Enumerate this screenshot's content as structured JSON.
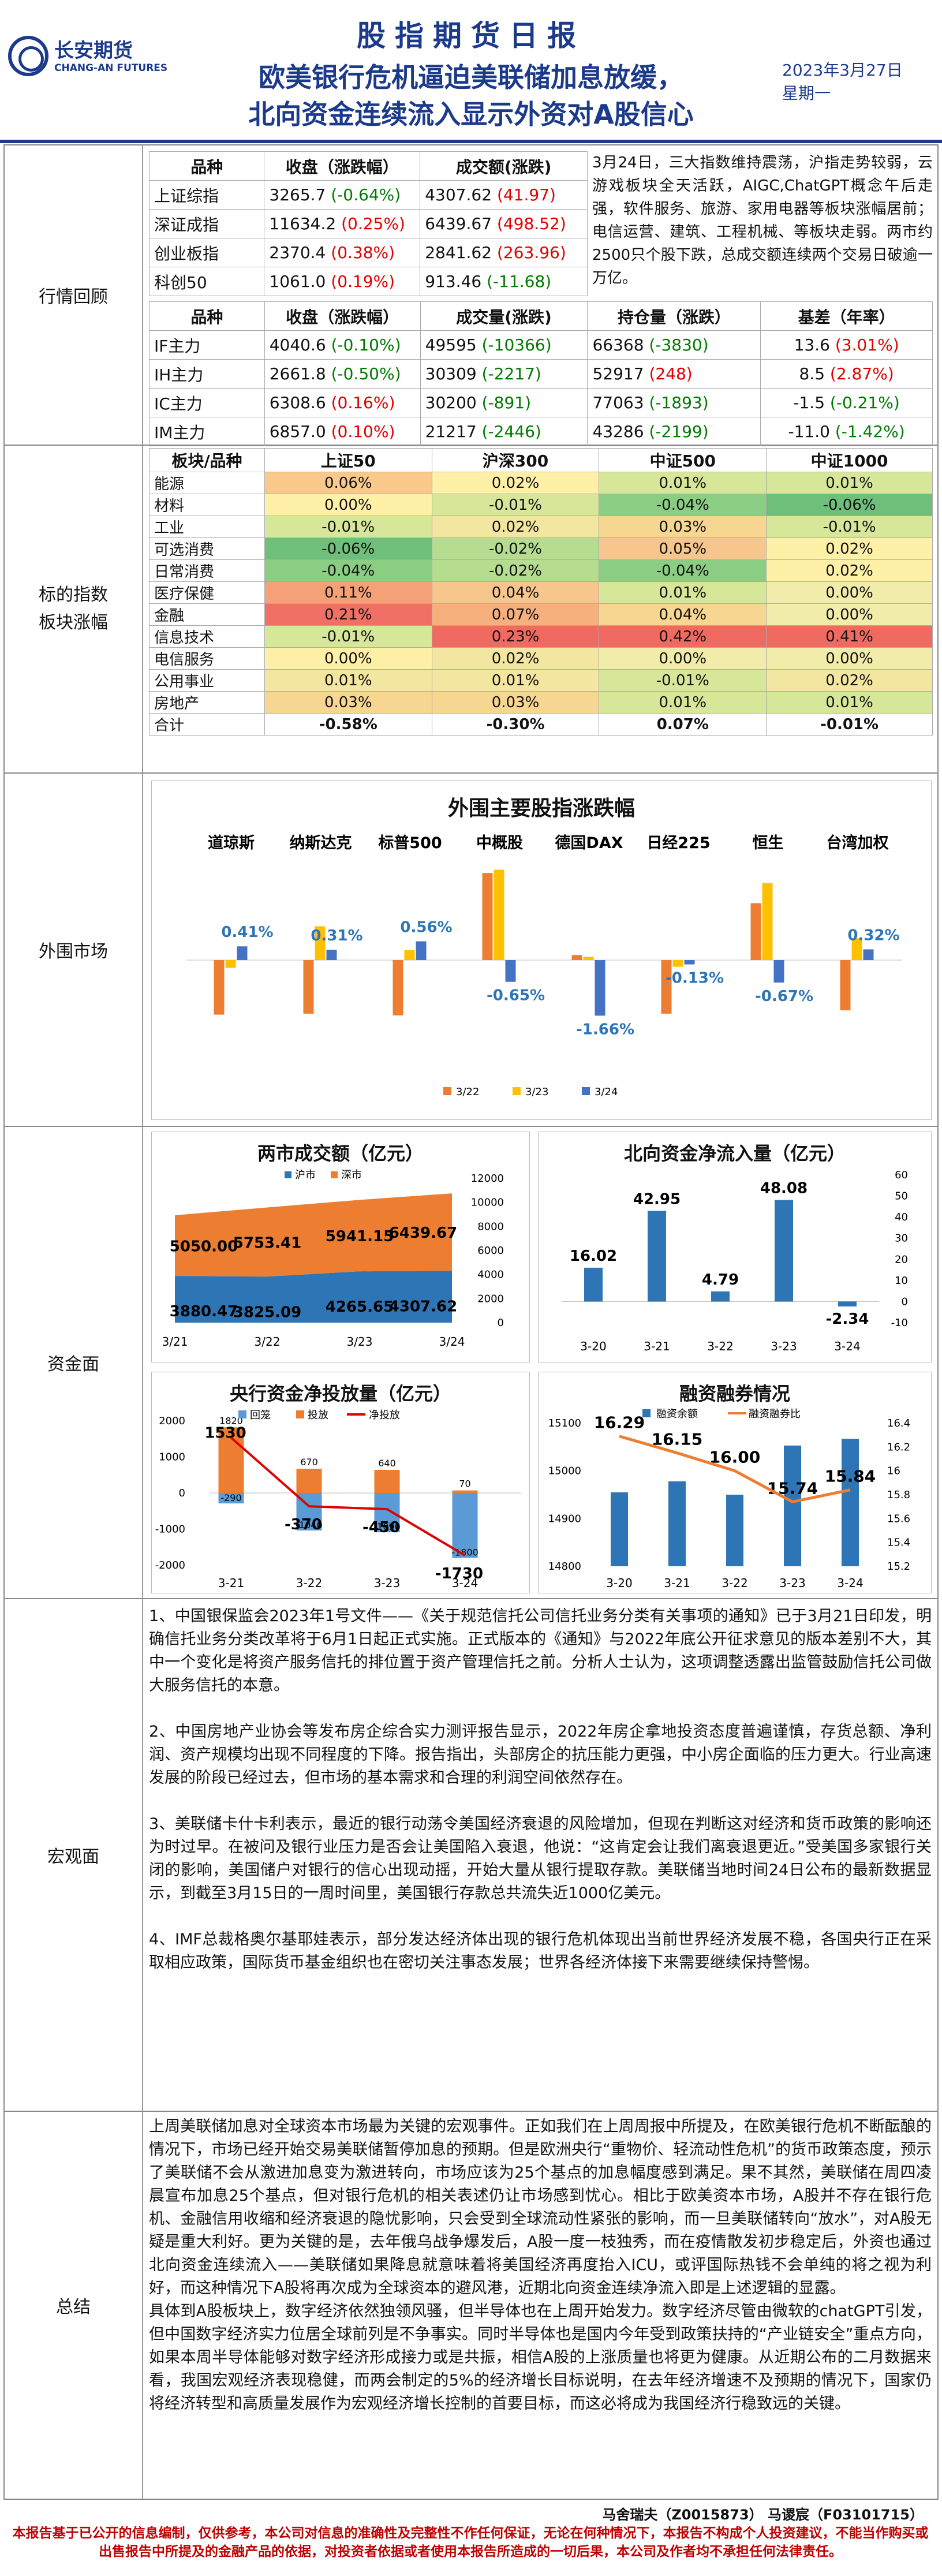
{
  "header": {
    "company_cn": "长安期货",
    "company_en": "CHANG-AN FUTURES",
    "report_title": "股指期货日报",
    "headline_line1": "欧美银行危机逼迫美联储加息放缓，",
    "headline_line2": "北向资金连续流入显示外资对A股信心",
    "date": "2023年3月27日",
    "weekday": "星期一"
  },
  "sections": {
    "market_review": "行情回顾",
    "index_sectors": "标的指数\n板块涨幅",
    "overseas": "外围市场",
    "capital": "资金面",
    "macro": "宏观面",
    "summary": "总结"
  },
  "spot_table": {
    "headers": [
      "品种",
      "收盘（涨跌幅）",
      "成交额(涨跌)"
    ],
    "rows": [
      {
        "name": "上证综指",
        "close": "3265.7",
        "chg": "(-0.64%)",
        "chg_dir": "down",
        "vol": "4307.62",
        "vchg": "(41.97)",
        "vchg_dir": "up"
      },
      {
        "name": "深证成指",
        "close": "11634.2",
        "chg": "(0.25%)",
        "chg_dir": "up",
        "vol": "6439.67",
        "vchg": "(498.52)",
        "vchg_dir": "up"
      },
      {
        "name": "创业板指",
        "close": "2370.4",
        "chg": "(0.38%)",
        "chg_dir": "up",
        "vol": "2841.62",
        "vchg": "(263.96)",
        "vchg_dir": "up"
      },
      {
        "name": "科创50",
        "close": "1061.0",
        "chg": "(0.19%)",
        "chg_dir": "up",
        "vol": "913.46",
        "vchg": "(-11.68)",
        "vchg_dir": "down"
      }
    ],
    "comment": "3月24日，三大指数维持震荡，沪指走势较弱，云游戏板块全天活跃，AIGC,ChatGPT概念午后走强，软件服务、旅游、家用电器等板块涨幅居前；电信运营、建筑、工程机械、等板块走弱。两市约2500只个股下跌，总成交额连续两个交易日破逾一万亿。"
  },
  "futures_table": {
    "headers": [
      "品种",
      "收盘（涨跌幅）",
      "成交量(涨跌)",
      "持仓量（涨跌）",
      "基差（年率）"
    ],
    "rows": [
      {
        "name": "IF主力",
        "close": "4040.6",
        "chg": "(-0.10%)",
        "chg_dir": "down",
        "vol": "49595",
        "vchg": "(-10366)",
        "vchg_dir": "down",
        "oi": "66368",
        "oichg": "(-3830)",
        "oichg_dir": "down",
        "basis": "13.6",
        "rate": "(3.01%)",
        "rate_dir": "up"
      },
      {
        "name": "IH主力",
        "close": "2661.8",
        "chg": "(-0.50%)",
        "chg_dir": "down",
        "vol": "30309",
        "vchg": "(-2217)",
        "vchg_dir": "down",
        "oi": "52917",
        "oichg": "(248)",
        "oichg_dir": "up",
        "basis": "8.5",
        "rate": "(2.87%)",
        "rate_dir": "up"
      },
      {
        "name": "IC主力",
        "close": "6308.6",
        "chg": "(0.16%)",
        "chg_dir": "up",
        "vol": "30200",
        "vchg": "(-891)",
        "vchg_dir": "down",
        "oi": "77063",
        "oichg": "(-1893)",
        "oichg_dir": "down",
        "basis": "-1.5",
        "rate": "(-0.21%)",
        "rate_dir": "down"
      },
      {
        "name": "IM主力",
        "close": "6857.0",
        "chg": "(0.10%)",
        "chg_dir": "up",
        "vol": "21217",
        "vchg": "(-2446)",
        "vchg_dir": "down",
        "oi": "43286",
        "oichg": "(-2199)",
        "oichg_dir": "down",
        "basis": "-11.0",
        "rate": "(-1.42%)",
        "rate_dir": "down"
      }
    ]
  },
  "sector_table": {
    "headers": [
      "板块/品种",
      "上证50",
      "沪深300",
      "中证500",
      "中证1000"
    ],
    "rows": [
      {
        "name": "能源",
        "v": [
          "0.06%",
          "0.02%",
          "0.01%",
          "0.01%"
        ],
        "c": [
          "#f8c98a",
          "#fff0a8",
          "#d6e79a",
          "#d6e79a"
        ]
      },
      {
        "name": "材料",
        "v": [
          "0.00%",
          "-0.01%",
          "-0.04%",
          "-0.06%"
        ],
        "c": [
          "#fff0a8",
          "#d6e79a",
          "#8ccd84",
          "#6dbf7a"
        ]
      },
      {
        "name": "工业",
        "v": [
          "-0.01%",
          "0.02%",
          "0.03%",
          "-0.01%"
        ],
        "c": [
          "#d6e79a",
          "#f2e6a0",
          "#f6d690",
          "#d6e79a"
        ]
      },
      {
        "name": "可选消费",
        "v": [
          "-0.06%",
          "-0.02%",
          "0.05%",
          "0.02%"
        ],
        "c": [
          "#6dbf7a",
          "#b6dc90",
          "#f6c68c",
          "#fff0a8"
        ]
      },
      {
        "name": "日常消费",
        "v": [
          "-0.04%",
          "-0.02%",
          "-0.04%",
          "0.02%"
        ],
        "c": [
          "#8ccd84",
          "#b6dc90",
          "#8ccd84",
          "#fff0a8"
        ]
      },
      {
        "name": "医疗保健",
        "v": [
          "0.11%",
          "0.04%",
          "0.01%",
          "0.00%"
        ],
        "c": [
          "#f4a178",
          "#f6c68c",
          "#d6e79a",
          "#f2ecaa"
        ]
      },
      {
        "name": "金融",
        "v": [
          "0.21%",
          "0.07%",
          "0.04%",
          "0.00%"
        ],
        "c": [
          "#f07066",
          "#f5b07e",
          "#f6d690",
          "#f2ecaa"
        ]
      },
      {
        "name": "信息技术",
        "v": [
          "-0.01%",
          "0.23%",
          "0.42%",
          "0.41%"
        ],
        "c": [
          "#d6e79a",
          "#f06a62",
          "#f06a62",
          "#f06a62"
        ]
      },
      {
        "name": "电信服务",
        "v": [
          "0.00%",
          "0.02%",
          "0.00%",
          "0.00%"
        ],
        "c": [
          "#fff0a8",
          "#f2e6a0",
          "#f2ecaa",
          "#f2ecaa"
        ]
      },
      {
        "name": "公用事业",
        "v": [
          "0.01%",
          "0.01%",
          "-0.01%",
          "0.02%"
        ],
        "c": [
          "#f2e6a0",
          "#f2e6a0",
          "#d6e79a",
          "#f2e6a0"
        ]
      },
      {
        "name": "房地产",
        "v": [
          "0.03%",
          "0.03%",
          "0.01%",
          "0.01%"
        ],
        "c": [
          "#f6d690",
          "#f6d690",
          "#d6e79a",
          "#d6e79a"
        ]
      }
    ],
    "total": {
      "name": "合计",
      "v": [
        "-0.58%",
        "-0.30%",
        "0.07%",
        "-0.01%"
      ]
    }
  },
  "chart_data": [
    {
      "type": "bar",
      "title": "外围主要股指涨跌幅",
      "categories": [
        "道琼斯",
        "纳斯达克",
        "标普500",
        "中概股",
        "德国DAX",
        "日经225",
        "恒生",
        "台湾加权"
      ],
      "series": [
        {
          "name": "3/22",
          "values": [
            -1.63,
            -1.6,
            -1.65,
            2.6,
            0.15,
            -1.6,
            1.7,
            -1.5
          ],
          "color": "#ed7d31"
        },
        {
          "name": "3/23",
          "values": [
            -0.23,
            1.01,
            0.3,
            2.7,
            0.1,
            -0.2,
            2.3,
            0.65
          ],
          "color": "#ffc000"
        },
        {
          "name": "3/24",
          "values": [
            0.41,
            0.31,
            0.56,
            -0.65,
            -1.66,
            -0.13,
            -0.67,
            0.32
          ],
          "color": "#4472c4"
        }
      ],
      "data_labels": [
        "0.41%",
        "0.31%",
        "0.56%",
        "-0.65%",
        "-1.66%",
        "-0.13%",
        "-0.67%",
        "0.32%"
      ],
      "legend": "bottom"
    },
    {
      "type": "bar",
      "title": "两市成交额（亿元）",
      "categories": [
        "3/21",
        "3/22",
        "3/23",
        "3/24"
      ],
      "series": [
        {
          "name": "沪市",
          "values": [
            3880.47,
            3825.09,
            4265.65,
            4307.62
          ],
          "color": "#2e75b6"
        },
        {
          "name": "深市",
          "values": [
            5050.0,
            5753.41,
            5941.15,
            6439.67
          ],
          "color": "#ed7d31"
        }
      ],
      "y_ticks": [
        "12000",
        "10000",
        "8000",
        "6000",
        "4000",
        "2000",
        "0"
      ],
      "ylim": [
        0,
        12000
      ],
      "legend": "top"
    },
    {
      "type": "bar",
      "title": "北向资金净流入量（亿元）",
      "categories": [
        "3-20",
        "3-21",
        "3-22",
        "3-23",
        "3-24"
      ],
      "values": [
        16.02,
        42.95,
        4.79,
        48.08,
        -2.34
      ],
      "color": "#2e75b6",
      "y_ticks": [
        "60",
        "50",
        "40",
        "30",
        "20",
        "10",
        "0",
        "-10"
      ],
      "ylim": [
        -10,
        60
      ]
    },
    {
      "type": "bar",
      "title": "央行资金净投放量（亿元）",
      "categories": [
        "3-21",
        "3-22",
        "3-23",
        "3-24"
      ],
      "series": [
        {
          "name": "回笼",
          "values": [
            -290,
            -1040,
            -1090,
            -1800
          ],
          "color": "#5b9bd5"
        },
        {
          "name": "投放",
          "values": [
            1820,
            670,
            640,
            70
          ],
          "color": "#ed7d31"
        },
        {
          "name": "净投放",
          "values": [
            1530,
            -370,
            -450,
            -1730
          ],
          "color": "#e00000"
        }
      ],
      "y_ticks": [
        "2000",
        "1000",
        "0",
        "-1000",
        "-2000"
      ],
      "ylim": [
        -2000,
        2000
      ],
      "legend": "top"
    },
    {
      "type": "bar",
      "title": "融资融券情况",
      "categories": [
        "3-20",
        "3-21",
        "3-22",
        "3-23",
        "3-24"
      ],
      "series": [
        {
          "name": "融资余额",
          "values": [
            14955,
            14978,
            14950,
            15053,
            15067
          ],
          "color": "#2e75b6"
        },
        {
          "name": "融资融券比",
          "values": [
            16.29,
            16.15,
            16.0,
            15.74,
            15.84
          ],
          "color": "#ed7d31"
        }
      ],
      "y_ticks": [
        "15100",
        "15000",
        "14900",
        "14800"
      ],
      "y2_ticks": [
        "16.4",
        "16.2",
        "16",
        "15.8",
        "15.6",
        "15.4",
        "15.2"
      ],
      "ylim": [
        14800,
        15100
      ],
      "y2lim": [
        15.2,
        16.4
      ],
      "legend": "top"
    }
  ],
  "macro": {
    "paragraphs": [
      "1、中国银保监会2023年1号文件——《关于规范信托公司信托业务分类有关事项的通知》已于3月21日印发，明确信托业务分类改革将于6月1日起正式实施。正式版本的《通知》与2022年底公开征求意见的版本差别不大，其中一个变化是将资产服务信托的排位置于资产管理信托之前。分析人士认为，这项调整透露出监管鼓励信托公司做大服务信托的本意。",
      "2、中国房地产业协会等发布房企综合实力测评报告显示，2022年房企拿地投资态度普遍谨慎，存货总额、净利润、资产规模均出现不同程度的下降。报告指出，头部房企的抗压能力更强，中小房企面临的压力更大。行业高速发展的阶段已经过去，但市场的基本需求和合理的利润空间依然存在。",
      "3、美联储卡什卡利表示，最近的银行动荡令美国经济衰退的风险增加，但现在判断这对经济和货币政策的影响还为时过早。在被问及银行业压力是否会让美国陷入衰退，他说：“这肯定会让我们离衰退更近。”受美国多家银行关闭的影响，美国储户对银行的信心出现动摇，开始大量从银行提取存款。美联储当地时间24日公布的最新数据显示，到截至3月15日的一周时间里，美国银行存款总共流失近1000亿美元。",
      "4、IMF总裁格奥尔基耶娃表示，部分发达经济体出现的银行危机体现出当前世界经济发展不稳，各国央行正在采取相应政策，国际货币基金组织也在密切关注事态发展；世界各经济体接下来需要继续保持警惕。"
    ]
  },
  "summary": {
    "paragraphs": [
      "上周美联储加息对全球资本市场最为关键的宏观事件。正如我们在上周周报中所提及，在欧美银行危机不断酝酿的情况下，市场已经开始交易美联储暂停加息的预期。但是欧洲央行“重物价、轻流动性危机”的货币政策态度，预示了美联储不会从激进加息变为激进转向，市场应该为25个基点的加息幅度感到满足。果不其然，美联储在周四凌晨宣布加息25个基点，但对银行危机的相关表述仍让市场感到忧心。相比于欧美资本市场，A股并不存在银行危机、金融信用收缩和经济衰退的隐忧影响，只会受到全球流动性紧张的影响，而一旦美联储转向“放水”，对A股无疑是重大利好。更为关键的是，去年俄乌战争爆发后，A股一度一枝独秀，而在疫情散发初步稳定后，外资也通过北向资金连续流入——美联储如果降息就意味着将美国经济再度抬入ICU，或评国际热钱不会单纯的将之视为利好，而这种情况下A股将再次成为全球资本的避风港，近期北向资金连续净流入即是上述逻辑的显露。",
      "具体到A股板块上，数字经济依然独领风骚，但半导体也在上周开始发力。数字经济尽管由微软的chatGPT引发，但中国数字经济实力位居全球前列是不争事实。同时半导体也是国内今年受到政策扶持的“产业链安全”重点方向，如果本周半导体能够对数字经济形成接力或是共振，相信A股的上涨质量也将更为健康。从近期公布的二月数据来看，我国宏观经济表现稳健，而两会制定的5%的经济增长目标说明，在去年经济增速不及预期的情况下，国家仍将经济转型和高质量发展作为宏观经济增长控制的首要目标，而这必将成为我国经济行稳致远的关键。"
    ]
  },
  "footer": {
    "authors": "马舍瑞夫（Z0015873）   马谡宸（F03101715）",
    "disclaimer": "本报告基于已公开的信息编制，仅供参考，本公司对信息的准确性及完整性不作任何保证，无论在何种情况下，本报告不构成个人投资建议，不能当作购买或出售报告中所提及的金融产品的依据，对投资者依据或者使用本报告所造成的一切后果，本公司及作者均不承担任何法律责任。"
  }
}
